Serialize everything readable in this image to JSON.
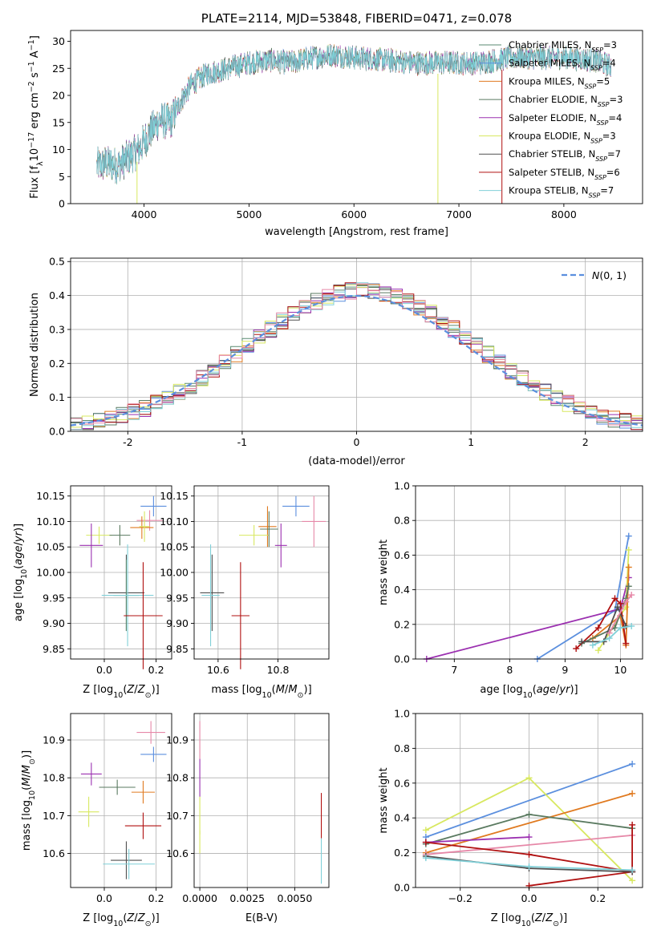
{
  "colors": {
    "chabrier_miles": "#5a8a70",
    "salpeter_miles": "#5b8fde",
    "kroupa_miles": "#e07a20",
    "chabrier_elodie": "#5a7a60",
    "salpeter_elodie": "#9b30b0",
    "kroupa_elodie": "#d8e860",
    "chabrier_stelib": "#505050",
    "salpeter_stelib": "#b01010",
    "kroupa_stelib": "#80d0d8",
    "pink": "#e688a8",
    "normal_curve": "#5b8fde"
  },
  "chart_data": [
    {
      "id": "spectrum",
      "type": "line",
      "title": "PLATE=2114, MJD=53848, FIBERID=0471, z=0.078",
      "xlabel": "wavelength [Angstrom, rest frame]",
      "ylabel": "Flux [f_λ 10^-17 erg cm^-2 s^-1 A^-1]",
      "xlim": [
        3300,
        8750
      ],
      "ylim": [
        0,
        32
      ],
      "xticks": [
        4000,
        5000,
        6000,
        7000,
        8000
      ],
      "yticks": [
        0,
        5,
        10,
        15,
        20,
        25,
        30
      ],
      "grid": false,
      "legend_position": "top-right",
      "legend": [
        "Chabrier MILES, N_SSP=3",
        "Salpeter MILES, N_SSP=4",
        "Kroupa MILES, N_SSP=5",
        "Chabrier ELODIE, N_SSP=3",
        "Salpeter ELODIE, N_SSP=4",
        "Kroupa ELODIE, N_SSP=3",
        "Chabrier STELIB, N_SSP=7",
        "Salpeter STELIB, N_SSP=6",
        "Kroupa STELIB, N_SSP=7"
      ],
      "continuum_x": [
        3550,
        3650,
        3750,
        3850,
        3950,
        4050,
        4150,
        4250,
        4350,
        4450,
        4600,
        4800,
        5000,
        5200,
        5400,
        5600,
        5800,
        6000,
        6300,
        6600,
        6900,
        7200,
        7500,
        7800,
        8000,
        8300,
        8500
      ],
      "continuum_y": [
        7,
        7.5,
        7,
        8.5,
        10,
        13,
        15.5,
        15,
        19,
        22,
        24,
        25,
        26,
        26.5,
        26,
        27,
        27.5,
        27,
        26.5,
        26,
        26,
        26,
        27,
        27,
        27,
        26.5,
        25
      ],
      "drops": [
        {
          "x": 3933,
          "y_min": 0
        },
        {
          "x": 6800,
          "y_min": 0
        },
        {
          "x": 7410,
          "y_min": 0
        }
      ]
    },
    {
      "id": "residuals",
      "type": "line",
      "xlabel": "(data-model)/error",
      "ylabel": "Normed distribution",
      "xlim": [
        -2.5,
        2.5
      ],
      "ylim": [
        0,
        0.51
      ],
      "xticks": [
        -2,
        -1,
        0,
        1,
        2
      ],
      "yticks": [
        0.0,
        0.1,
        0.2,
        0.3,
        0.4,
        0.5
      ],
      "grid": true,
      "legend_position": "top-right",
      "legend": [
        "N(0,1)"
      ],
      "reference_curve": "standard normal density",
      "bin_width": 0.1
    },
    {
      "id": "age_vs_Z",
      "type": "scatter",
      "xlabel": "Z [log10(Z/Z_sun)]",
      "ylabel": "age  [log10(age/yr)]",
      "xlim": [
        -0.13,
        0.26
      ],
      "ylim": [
        9.83,
        10.17
      ],
      "xticks": [
        0.0,
        0.2
      ],
      "yticks": [
        9.85,
        9.9,
        9.95,
        10.0,
        10.05,
        10.1,
        10.15
      ],
      "grid": true,
      "points": [
        {
          "x": 0.19,
          "y": 10.13,
          "xerr": 0.05,
          "yerr": 0.02,
          "color": "salpeter_miles"
        },
        {
          "x": 0.175,
          "y": 10.102,
          "xerr": 0.05,
          "yerr": 0.02,
          "color": "pink"
        },
        {
          "x": 0.145,
          "y": 10.088,
          "xerr": 0.045,
          "yerr": 0.022,
          "color": "kroupa_miles"
        },
        {
          "x": 0.155,
          "y": 10.09,
          "xerr": 0.02,
          "yerr": 0.03,
          "color": "kroupa_elodie"
        },
        {
          "x": -0.02,
          "y": 10.073,
          "xerr": 0.05,
          "yerr": 0.017,
          "color": "kroupa_elodie"
        },
        {
          "x": 0.06,
          "y": 10.073,
          "xerr": 0.04,
          "yerr": 0.02,
          "color": "chabrier_elodie"
        },
        {
          "x": -0.05,
          "y": 10.053,
          "xerr": 0.045,
          "yerr": 0.043,
          "color": "salpeter_elodie"
        },
        {
          "x": 0.085,
          "y": 9.96,
          "xerr": 0.07,
          "yerr": 0.075,
          "color": "chabrier_stelib"
        },
        {
          "x": 0.085,
          "y": 9.955,
          "xerr": 0.05,
          "yerr": 0.07,
          "color": "chabrier_miles"
        },
        {
          "x": 0.09,
          "y": 9.955,
          "xerr": 0.1,
          "yerr": 0.1,
          "color": "kroupa_stelib"
        },
        {
          "x": 0.15,
          "y": 9.915,
          "xerr": 0.075,
          "yerr": 0.105,
          "color": "salpeter_stelib"
        }
      ]
    },
    {
      "id": "age_vs_mass",
      "type": "scatter",
      "xlabel": "mass [log10(M/M_sun)]",
      "ylabel": "",
      "xlim": [
        10.52,
        10.97
      ],
      "ylim": [
        9.83,
        10.17
      ],
      "xticks": [
        10.6,
        10.8
      ],
      "yticks": [
        9.85,
        9.9,
        9.95,
        10.0,
        10.05,
        10.1,
        10.15
      ],
      "grid": true,
      "points": [
        {
          "x": 10.86,
          "y": 10.13,
          "xerr": 0.045,
          "yerr": 0.02,
          "color": "salpeter_miles"
        },
        {
          "x": 10.92,
          "y": 10.1,
          "xerr": 0.04,
          "yerr": 0.05,
          "color": "pink"
        },
        {
          "x": 10.765,
          "y": 10.09,
          "xerr": 0.03,
          "yerr": 0.04,
          "color": "kroupa_miles"
        },
        {
          "x": 10.72,
          "y": 10.073,
          "xerr": 0.05,
          "yerr": 0.02,
          "color": "kroupa_elodie"
        },
        {
          "x": 10.77,
          "y": 10.085,
          "xerr": 0.03,
          "yerr": 0.035,
          "color": "chabrier_elodie"
        },
        {
          "x": 10.81,
          "y": 10.053,
          "xerr": 0.02,
          "yerr": 0.043,
          "color": "salpeter_elodie"
        },
        {
          "x": 10.58,
          "y": 9.96,
          "xerr": 0.04,
          "yerr": 0.075,
          "color": "chabrier_stelib"
        },
        {
          "x": 10.575,
          "y": 9.955,
          "xerr": 0.03,
          "yerr": 0.1,
          "color": "kroupa_stelib"
        },
        {
          "x": 10.675,
          "y": 9.915,
          "xerr": 0.03,
          "yerr": 0.105,
          "color": "salpeter_stelib"
        }
      ]
    },
    {
      "id": "weight_vs_age",
      "type": "line",
      "xlabel": "age  [log10(age/yr)]",
      "ylabel": "mass weight",
      "xlim": [
        6.3,
        10.4
      ],
      "ylim": [
        0,
        1
      ],
      "xticks": [
        7,
        8,
        9,
        10
      ],
      "yticks": [
        0.0,
        0.2,
        0.4,
        0.6,
        0.8,
        1.0
      ],
      "grid": true,
      "series": [
        {
          "color": "salpeter_miles",
          "x": [
            8.5,
            9.9,
            10.15
          ],
          "y": [
            0.0,
            0.28,
            0.71
          ]
        },
        {
          "color": "salpeter_elodie",
          "x": [
            6.5,
            10.0,
            10.15
          ],
          "y": [
            0.0,
            0.29,
            0.47
          ]
        },
        {
          "color": "kroupa_elodie",
          "x": [
            9.6,
            10.1,
            10.15
          ],
          "y": [
            0.05,
            0.3,
            0.63
          ]
        },
        {
          "color": "kroupa_miles",
          "x": [
            9.5,
            10.0,
            10.1,
            10.15
          ],
          "y": [
            0.12,
            0.25,
            0.08,
            0.53
          ]
        },
        {
          "color": "chabrier_elodie",
          "x": [
            9.3,
            9.9,
            10.1,
            10.15
          ],
          "y": [
            0.09,
            0.18,
            0.35,
            0.42
          ]
        },
        {
          "color": "salpeter_stelib",
          "x": [
            9.2,
            9.6,
            9.9,
            10.0,
            10.1
          ],
          "y": [
            0.06,
            0.18,
            0.35,
            0.32,
            0.09
          ]
        },
        {
          "color": "chabrier_stelib",
          "x": [
            9.3,
            9.7,
            9.95,
            10.1
          ],
          "y": [
            0.1,
            0.1,
            0.3,
            0.19
          ]
        },
        {
          "color": "kroupa_stelib",
          "x": [
            9.5,
            9.8,
            10.0,
            10.2
          ],
          "y": [
            0.08,
            0.12,
            0.18,
            0.19
          ]
        },
        {
          "color": "pink",
          "x": [
            9.8,
            10.1,
            10.2
          ],
          "y": [
            0.15,
            0.33,
            0.37
          ]
        }
      ]
    },
    {
      "id": "mass_vs_Z",
      "type": "scatter",
      "xlabel": "Z [log10(Z/Z_sun)]",
      "ylabel": "mass [log10(M/M_sun)]",
      "xlim": [
        -0.13,
        0.26
      ],
      "ylim": [
        10.51,
        10.97
      ],
      "xticks": [
        0.0,
        0.2
      ],
      "yticks": [
        10.6,
        10.7,
        10.8,
        10.9
      ],
      "grid": true,
      "points": [
        {
          "x": 0.18,
          "y": 10.92,
          "xerr": 0.055,
          "yerr": 0.03,
          "color": "pink"
        },
        {
          "x": 0.19,
          "y": 10.862,
          "xerr": 0.05,
          "yerr": 0.02,
          "color": "salpeter_miles"
        },
        {
          "x": -0.05,
          "y": 10.81,
          "xerr": 0.04,
          "yerr": 0.03,
          "color": "salpeter_elodie"
        },
        {
          "x": 0.05,
          "y": 10.775,
          "xerr": 0.07,
          "yerr": 0.02,
          "color": "chabrier_elodie"
        },
        {
          "x": 0.15,
          "y": 10.762,
          "xerr": 0.045,
          "yerr": 0.03,
          "color": "kroupa_miles"
        },
        {
          "x": -0.06,
          "y": 10.71,
          "xerr": 0.04,
          "yerr": 0.04,
          "color": "kroupa_elodie"
        },
        {
          "x": 0.15,
          "y": 10.673,
          "xerr": 0.07,
          "yerr": 0.035,
          "color": "salpeter_stelib"
        },
        {
          "x": 0.085,
          "y": 10.582,
          "xerr": 0.06,
          "yerr": 0.05,
          "color": "chabrier_stelib"
        },
        {
          "x": 0.095,
          "y": 10.572,
          "xerr": 0.1,
          "yerr": 0.04,
          "color": "kroupa_stelib"
        }
      ]
    },
    {
      "id": "mass_vs_EBV",
      "type": "scatter",
      "xlabel": "E(B-V)",
      "ylabel": "",
      "xlim": [
        -0.0003,
        0.0068
      ],
      "ylim": [
        10.51,
        10.97
      ],
      "xticks": [
        0.0,
        0.0025,
        0.005
      ],
      "xtick_labels": [
        "0.0000",
        "0.0025",
        "0.0050"
      ],
      "yticks": [
        10.6,
        10.7,
        10.8,
        10.9
      ],
      "grid": true,
      "points": [
        {
          "x": 0.0,
          "y": 10.9,
          "xerr": 0,
          "yerr": 0.05,
          "color": "pink"
        },
        {
          "x": 0.0,
          "y": 10.8,
          "xerr": 0,
          "yerr": 0.05,
          "color": "salpeter_elodie"
        },
        {
          "x": 0.0,
          "y": 10.7,
          "xerr": 0,
          "yerr": 0.05,
          "color": "kroupa_elodie"
        },
        {
          "x": 0.0,
          "y": 10.63,
          "xerr": 0,
          "yerr": 0.03,
          "color": "kroupa_elodie"
        },
        {
          "x": 0.0064,
          "y": 10.7,
          "xerr": 0,
          "yerr": 0.06,
          "color": "salpeter_stelib"
        },
        {
          "x": 0.0064,
          "y": 10.58,
          "xerr": 0,
          "yerr": 0.06,
          "color": "kroupa_stelib"
        }
      ]
    },
    {
      "id": "weight_vs_Z",
      "type": "line",
      "xlabel": "Z [log10(Z/Z_sun)]",
      "ylabel": "mass weight",
      "xlim": [
        -0.33,
        0.33
      ],
      "ylim": [
        0,
        1
      ],
      "xticks": [
        -0.2,
        0.0,
        0.2
      ],
      "yticks": [
        0.0,
        0.2,
        0.4,
        0.6,
        0.8,
        1.0
      ],
      "grid": true,
      "series": [
        {
          "color": "salpeter_miles",
          "x": [
            -0.3,
            0.3
          ],
          "y": [
            0.29,
            0.71
          ]
        },
        {
          "color": "kroupa_elodie",
          "x": [
            -0.3,
            0.0,
            0.3
          ],
          "y": [
            0.33,
            0.63,
            0.04
          ]
        },
        {
          "color": "kroupa_miles",
          "x": [
            -0.3,
            0.3
          ],
          "y": [
            0.2,
            0.54
          ]
        },
        {
          "color": "chabrier_elodie",
          "x": [
            -0.3,
            0.0,
            0.3
          ],
          "y": [
            0.25,
            0.42,
            0.34
          ]
        },
        {
          "color": "pink",
          "x": [
            -0.3,
            0.3
          ],
          "y": [
            0.19,
            0.3
          ]
        },
        {
          "color": "salpeter_elodie",
          "x": [
            -0.3,
            0.0
          ],
          "y": [
            0.26,
            0.29
          ]
        },
        {
          "color": "salpeter_stelib",
          "x": [
            -0.3,
            0.0,
            0.3,
            0.3
          ],
          "y": [
            0.26,
            0.19,
            0.09,
            0.36
          ]
        },
        {
          "color": "salpeter_stelib",
          "x": [
            0.0,
            0.3
          ],
          "y": [
            0.01,
            0.09
          ]
        },
        {
          "color": "chabrier_stelib",
          "x": [
            -0.3,
            0.0,
            0.3
          ],
          "y": [
            0.18,
            0.11,
            0.09
          ]
        },
        {
          "color": "kroupa_stelib",
          "x": [
            -0.3,
            0.0,
            0.3
          ],
          "y": [
            0.17,
            0.12,
            0.1
          ]
        }
      ]
    }
  ]
}
